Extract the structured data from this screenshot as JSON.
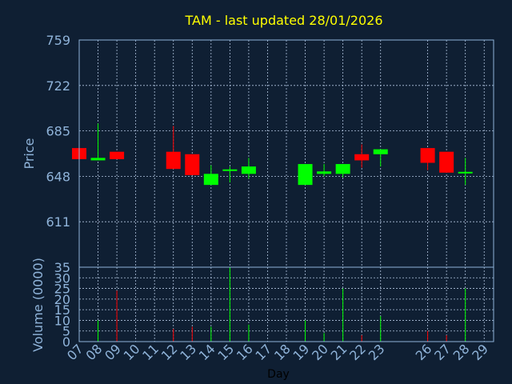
{
  "chart_data": {
    "type": "candlestick",
    "title": "TAM - last updated 28/01/2026",
    "colors": {
      "background": "#0f1f33",
      "frame": "#8fb3d9",
      "grid": "#b0c4de",
      "title": "#ffff00",
      "tick_label": "#8fb3d9",
      "up": "#00ff00",
      "down": "#ff0000",
      "xlabel": "#000000"
    },
    "price_panel": {
      "ylabel": "Price",
      "ylim": [
        574,
        759
      ],
      "yticks": [
        "759",
        "722",
        "685",
        "648",
        "611"
      ],
      "ytick_values": [
        759,
        722,
        685,
        648,
        611
      ],
      "grid": true
    },
    "volume_panel": {
      "ylabel": "Volume (0000)",
      "ylim": [
        0,
        35
      ],
      "yticks": [
        "35",
        "30",
        "25",
        "20",
        "15",
        "10",
        "5",
        "0"
      ],
      "ytick_values": [
        35,
        30,
        25,
        20,
        15,
        10,
        5,
        0
      ],
      "grid": true
    },
    "xlabel": "Day",
    "xlim": [
      7,
      29
    ],
    "x_ticks": [
      "07",
      "08",
      "09",
      "10",
      "11",
      "12",
      "13",
      "14",
      "15",
      "16",
      "17",
      "18",
      "19",
      "20",
      "21",
      "22",
      "23",
      "26",
      "27",
      "28",
      "29"
    ],
    "x_tick_values": [
      7,
      8,
      9,
      10,
      11,
      12,
      13,
      14,
      15,
      16,
      17,
      18,
      19,
      20,
      21,
      22,
      23,
      25.5,
      26.5,
      27.5,
      28.5
    ],
    "candles": [
      {
        "x": 7,
        "open": 671,
        "close": 662,
        "high": 671,
        "low": 662,
        "volume": 0
      },
      {
        "x": 8,
        "open": 661,
        "close": 663,
        "high": 691,
        "low": 661,
        "volume": 10
      },
      {
        "x": 9,
        "open": 668,
        "close": 662,
        "high": 668,
        "low": 662,
        "volume": 24
      },
      {
        "x": 12,
        "open": 668,
        "close": 654,
        "high": 689,
        "low": 654,
        "volume": 6
      },
      {
        "x": 13,
        "open": 666,
        "close": 649,
        "high": 666,
        "low": 649,
        "volume": 7
      },
      {
        "x": 14,
        "open": 641,
        "close": 650,
        "high": 657,
        "low": 641,
        "volume": 7
      },
      {
        "x": 15,
        "open": 652,
        "close": 653,
        "high": 656,
        "low": 643,
        "volume": 35
      },
      {
        "x": 16,
        "open": 650,
        "close": 656,
        "high": 663,
        "low": 646,
        "volume": 8
      },
      {
        "x": 19,
        "open": 641,
        "close": 658,
        "high": 658,
        "low": 641,
        "volume": 10
      },
      {
        "x": 20,
        "open": 650,
        "close": 652,
        "high": 658,
        "low": 648,
        "volume": 4
      },
      {
        "x": 21,
        "open": 650,
        "close": 658,
        "high": 658,
        "low": 647,
        "volume": 25
      },
      {
        "x": 22,
        "open": 666,
        "close": 661,
        "high": 674,
        "low": 655,
        "volume": 3
      },
      {
        "x": 23,
        "open": 666,
        "close": 670,
        "high": 670,
        "low": 656,
        "volume": 12
      },
      {
        "x": 25.5,
        "open": 671,
        "close": 659,
        "high": 671,
        "low": 653,
        "volume": 5
      },
      {
        "x": 26.5,
        "open": 668,
        "close": 651,
        "high": 668,
        "low": 651,
        "volume": 3
      },
      {
        "x": 27.5,
        "open": 650,
        "close": 651,
        "high": 663,
        "low": 641,
        "volume": 25
      }
    ]
  }
}
